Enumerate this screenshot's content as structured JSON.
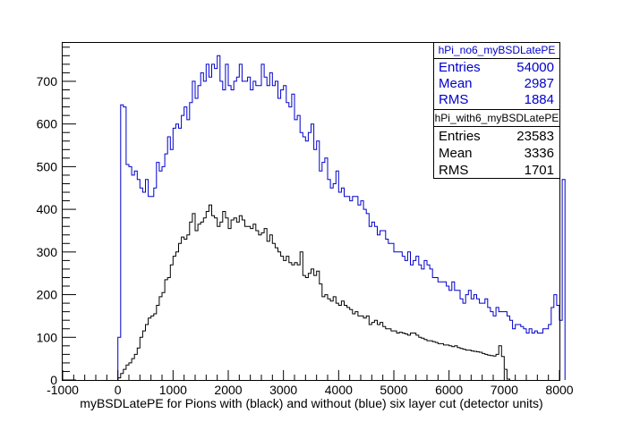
{
  "chart_data": {
    "type": "histogram",
    "xlabel": "myBSDLatePE for Pions with (black) and without (blue) six layer cut (detector units)",
    "ylabel": "",
    "xlim": [
      -1000,
      8000
    ],
    "ylim": [
      0,
      790
    ],
    "x_ticks": [
      -1000,
      0,
      1000,
      2000,
      3000,
      4000,
      5000,
      6000,
      7000,
      8000
    ],
    "y_ticks": [
      0,
      100,
      200,
      300,
      400,
      500,
      600,
      700
    ],
    "grid": false,
    "bin_width": 50,
    "series": [
      {
        "name": "hPi_no6_myBSDLatePE",
        "color": "#0000cc",
        "x_start": 0,
        "values": [
          100,
          645,
          640,
          505,
          500,
          480,
          490,
          470,
          450,
          440,
          470,
          430,
          430,
          450,
          510,
          490,
          500,
          530,
          570,
          540,
          590,
          600,
          590,
          620,
          640,
          610,
          650,
          700,
          660,
          690,
          720,
          700,
          740,
          710,
          740,
          730,
          760,
          700,
          680,
          740,
          690,
          680,
          700,
          710,
          740,
          700,
          700,
          710,
          680,
          700,
          690,
          690,
          740,
          710,
          690,
          720,
          690,
          700,
          660,
          680,
          690,
          650,
          640,
          670,
          610,
          620,
          580,
          570,
          560,
          580,
          600,
          540,
          560,
          490,
          510,
          520,
          470,
          450,
          460,
          490,
          440,
          450,
          430,
          430,
          420,
          430,
          430,
          410,
          420,
          400,
          390,
          360,
          370,
          360,
          340,
          350,
          350,
          330,
          320,
          320,
          300,
          300,
          300,
          290,
          280,
          300,
          270,
          280,
          290,
          270,
          260,
          280,
          270,
          260,
          240,
          240,
          230,
          230,
          230,
          220,
          210,
          230,
          210,
          210,
          190,
          180,
          200,
          210,
          190,
          200,
          190,
          180,
          180,
          190,
          170,
          160,
          150,
          170,
          160,
          160,
          160,
          150,
          140,
          120,
          130,
          130,
          125,
          120,
          110,
          120,
          110,
          115,
          110,
          110,
          120,
          120,
          130,
          170,
          200,
          175,
          140,
          470
        ]
      },
      {
        "name": "hPi_with6_myBSDLatePE",
        "color": "#000000",
        "x_start": 0,
        "values": [
          5,
          15,
          25,
          35,
          40,
          50,
          60,
          75,
          100,
          115,
          130,
          145,
          150,
          155,
          175,
          195,
          205,
          235,
          240,
          270,
          290,
          300,
          320,
          335,
          330,
          340,
          370,
          390,
          350,
          365,
          370,
          380,
          395,
          410,
          385,
          380,
          360,
          370,
          395,
          380,
          355,
          375,
          380,
          370,
          385,
          375,
          360,
          360,
          355,
          365,
          350,
          340,
          345,
          355,
          325,
          340,
          320,
          310,
          300,
          290,
          280,
          290,
          275,
          270,
          275,
          270,
          300,
          245,
          240,
          250,
          260,
          245,
          255,
          225,
          195,
          200,
          190,
          185,
          195,
          180,
          175,
          185,
          175,
          170,
          165,
          155,
          160,
          150,
          150,
          145,
          150,
          130,
          135,
          140,
          130,
          135,
          125,
          120,
          120,
          115,
          115,
          110,
          112,
          110,
          108,
          105,
          110,
          110,
          105,
          100,
          98,
          95,
          92,
          92,
          90,
          88,
          85,
          85,
          82,
          82,
          80,
          78,
          80,
          76,
          74,
          72,
          70,
          70,
          68,
          67,
          66,
          65,
          62,
          60,
          58,
          57,
          56,
          60,
          80,
          55,
          25,
          2
        ]
      }
    ]
  },
  "stats": {
    "no6": {
      "title": "hPi_no6_myBSDLatePE",
      "rows": [
        {
          "label": "Entries",
          "value": "54000"
        },
        {
          "label": "Mean",
          "value": "2987"
        },
        {
          "label": "RMS",
          "value": "1884"
        }
      ]
    },
    "with6": {
      "title": "hPi_with6_myBSDLatePE",
      "rows": [
        {
          "label": "Entries",
          "value": "23583"
        },
        {
          "label": "Mean",
          "value": "3336"
        },
        {
          "label": "RMS",
          "value": "1701"
        }
      ]
    }
  }
}
